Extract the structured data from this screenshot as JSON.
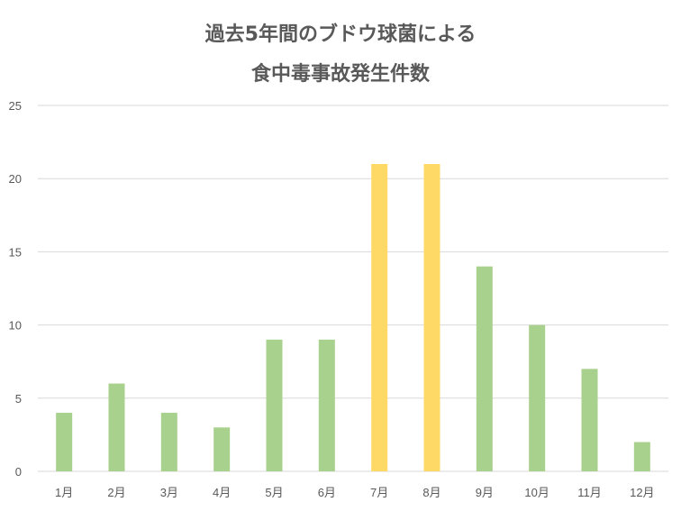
{
  "chart_data": {
    "type": "bar",
    "title_lines": [
      "過去5年間のブドウ球菌による",
      "食中毒事故発生件数"
    ],
    "categories": [
      "1月",
      "2月",
      "3月",
      "4月",
      "5月",
      "6月",
      "7月",
      "8月",
      "9月",
      "10月",
      "11月",
      "12月"
    ],
    "values": [
      4,
      6,
      4,
      3,
      9,
      9,
      21,
      21,
      14,
      10,
      7,
      2
    ],
    "highlight": [
      false,
      false,
      false,
      false,
      false,
      false,
      true,
      true,
      false,
      false,
      false,
      false
    ],
    "ylim": [
      0,
      25
    ],
    "yticks": [
      0,
      5,
      10,
      15,
      20,
      25
    ],
    "grid": true,
    "legend": "none",
    "colors": {
      "bar": "#a9d18e",
      "highlight": "#ffd966",
      "grid": "#d9d9d9",
      "text": "#595959"
    }
  }
}
